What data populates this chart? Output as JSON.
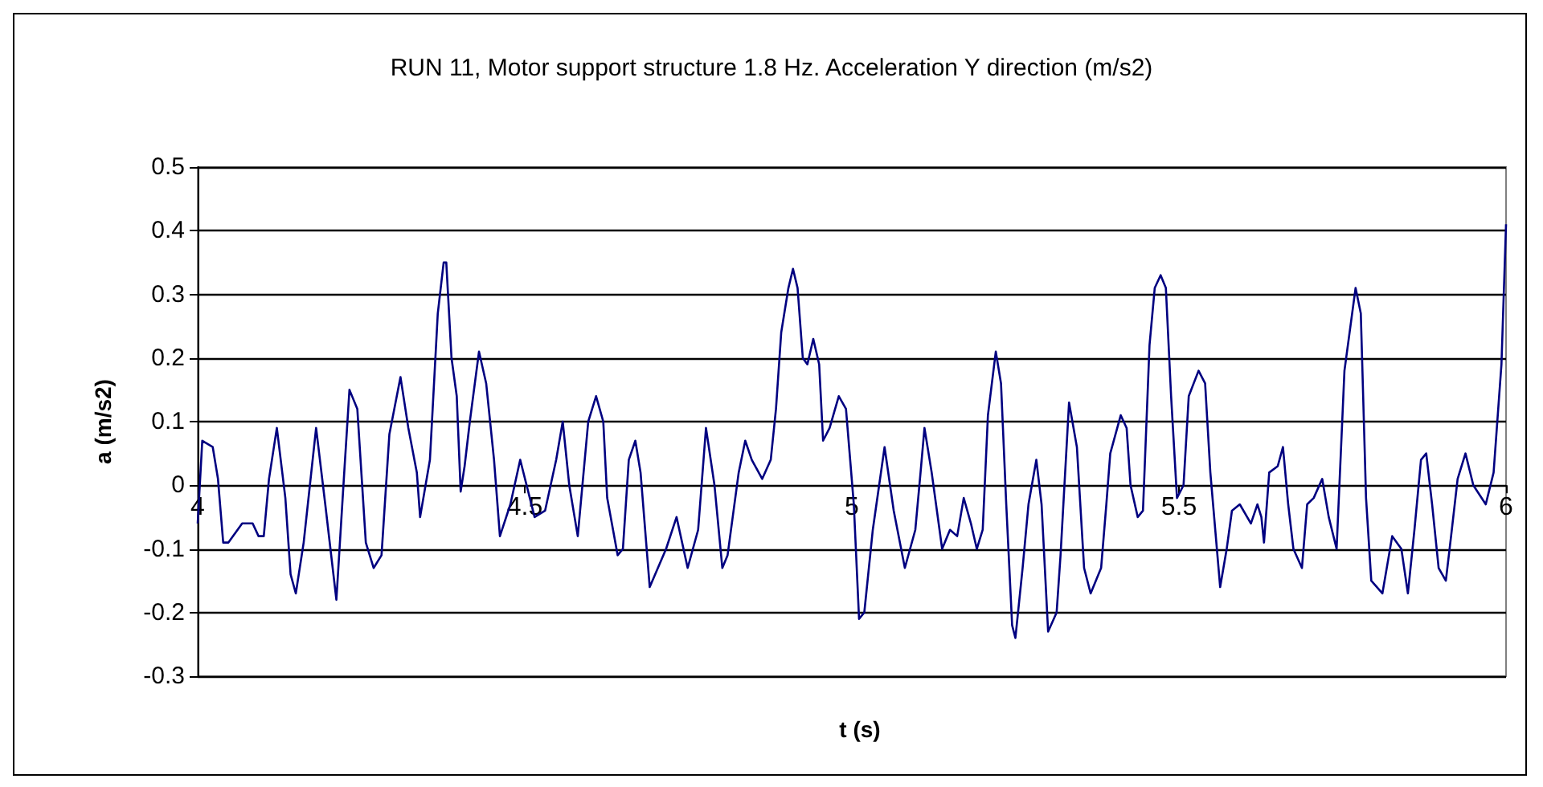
{
  "chart_data": {
    "type": "line",
    "title": "RUN 11, Motor support structure 1.8 Hz. Acceleration Y direction (m/s2)",
    "xlabel": "t (s)",
    "ylabel": "a (m/s2)",
    "xlim": [
      4,
      6
    ],
    "xticks": [
      4,
      4.5,
      5,
      5.5,
      6
    ],
    "ylim": [
      -0.3,
      0.5
    ],
    "yticks": [
      -0.3,
      -0.2,
      -0.1,
      0,
      0.1,
      0.2,
      0.3,
      0.4,
      0.5
    ],
    "grid": "y",
    "marker": "none",
    "line_style": "solid",
    "series": [
      {
        "color": "#000080",
        "x": [
          4.0,
          4.007,
          4.023,
          4.031,
          4.039,
          4.047,
          4.068,
          4.084,
          4.093,
          4.101,
          4.109,
          4.121,
          4.134,
          4.142,
          4.15,
          4.162,
          4.181,
          4.195,
          4.212,
          4.224,
          4.232,
          4.244,
          4.257,
          4.269,
          4.281,
          4.293,
          4.31,
          4.322,
          4.335,
          4.34,
          4.355,
          4.367,
          4.376,
          4.38,
          4.388,
          4.396,
          4.402,
          4.408,
          4.416,
          4.43,
          4.441,
          4.453,
          4.462,
          4.478,
          4.493,
          4.515,
          4.531,
          4.548,
          4.558,
          4.568,
          4.581,
          4.597,
          4.609,
          4.62,
          4.626,
          4.642,
          4.65,
          4.659,
          4.669,
          4.677,
          4.691,
          4.716,
          4.732,
          4.749,
          4.765,
          4.777,
          4.79,
          4.802,
          4.81,
          4.827,
          4.837,
          4.847,
          4.863,
          4.876,
          4.884,
          4.892,
          4.903,
          4.91,
          4.917,
          4.925,
          4.932,
          4.941,
          4.95,
          4.956,
          4.966,
          4.98,
          4.991,
          5.003,
          5.011,
          5.019,
          5.032,
          5.05,
          5.064,
          5.081,
          5.097,
          5.105,
          5.111,
          5.122,
          5.138,
          5.15,
          5.161,
          5.171,
          5.182,
          5.191,
          5.2,
          5.208,
          5.22,
          5.228,
          5.236,
          5.245,
          5.25,
          5.261,
          5.27,
          5.282,
          5.29,
          5.3,
          5.313,
          5.319,
          5.332,
          5.344,
          5.355,
          5.365,
          5.381,
          5.389,
          5.395,
          5.411,
          5.42,
          5.426,
          5.437,
          5.445,
          5.455,
          5.463,
          5.472,
          5.48,
          5.488,
          5.497,
          5.507,
          5.515,
          5.53,
          5.54,
          5.548,
          5.563,
          5.573,
          5.581,
          5.593,
          5.61,
          5.62,
          5.626,
          5.63,
          5.638,
          5.651,
          5.659,
          5.667,
          5.675,
          5.688,
          5.696,
          5.706,
          5.719,
          5.729,
          5.741,
          5.753,
          5.77,
          5.778,
          5.786,
          5.794,
          5.811,
          5.826,
          5.84,
          5.85,
          5.86,
          5.87,
          5.878,
          5.887,
          5.897,
          5.908,
          5.916,
          5.926,
          5.938,
          5.95,
          5.969,
          5.981,
          5.993,
          6.0
        ],
        "values": [
          -0.06,
          0.07,
          0.06,
          0.01,
          -0.09,
          -0.09,
          -0.06,
          -0.06,
          -0.08,
          -0.08,
          0.01,
          0.09,
          -0.02,
          -0.14,
          -0.17,
          -0.09,
          0.09,
          -0.03,
          -0.18,
          0.02,
          0.15,
          0.12,
          -0.09,
          -0.13,
          -0.11,
          0.08,
          0.17,
          0.09,
          0.02,
          -0.05,
          0.04,
          0.27,
          0.35,
          0.35,
          0.2,
          0.14,
          -0.01,
          0.03,
          0.1,
          0.21,
          0.16,
          0.04,
          -0.08,
          -0.03,
          0.04,
          -0.05,
          -0.04,
          0.04,
          0.1,
          0.0,
          -0.08,
          0.1,
          0.14,
          0.1,
          -0.02,
          -0.11,
          -0.1,
          0.04,
          0.07,
          0.02,
          -0.16,
          -0.1,
          -0.05,
          -0.13,
          -0.07,
          0.09,
          0.0,
          -0.13,
          -0.11,
          0.02,
          0.07,
          0.04,
          0.01,
          0.04,
          0.12,
          0.24,
          0.31,
          0.34,
          0.31,
          0.2,
          0.19,
          0.23,
          0.19,
          0.07,
          0.09,
          0.14,
          0.12,
          -0.03,
          -0.21,
          -0.2,
          -0.07,
          0.06,
          -0.04,
          -0.13,
          -0.07,
          0.02,
          0.09,
          0.02,
          -0.1,
          -0.07,
          -0.08,
          -0.02,
          -0.06,
          -0.1,
          -0.07,
          0.11,
          0.21,
          0.16,
          -0.03,
          -0.22,
          -0.24,
          -0.13,
          -0.03,
          0.04,
          -0.03,
          -0.23,
          -0.2,
          -0.11,
          0.13,
          0.06,
          -0.13,
          -0.17,
          -0.13,
          -0.03,
          0.05,
          0.11,
          0.09,
          0.0,
          -0.05,
          -0.04,
          0.22,
          0.31,
          0.33,
          0.31,
          0.14,
          -0.02,
          0.0,
          0.14,
          0.18,
          0.16,
          0.02,
          -0.16,
          -0.1,
          -0.04,
          -0.03,
          -0.06,
          -0.03,
          -0.05,
          -0.09,
          0.02,
          0.03,
          0.06,
          -0.03,
          -0.1,
          -0.13,
          -0.03,
          -0.02,
          0.01,
          -0.05,
          -0.1,
          0.18,
          0.31,
          0.27,
          -0.02,
          -0.15,
          -0.17,
          -0.08,
          -0.1,
          -0.17,
          -0.07,
          0.04,
          0.05,
          -0.03,
          -0.13,
          -0.15,
          -0.08,
          0.01,
          0.05,
          0.0,
          -0.03,
          0.02,
          0.19,
          0.41
        ]
      }
    ]
  }
}
